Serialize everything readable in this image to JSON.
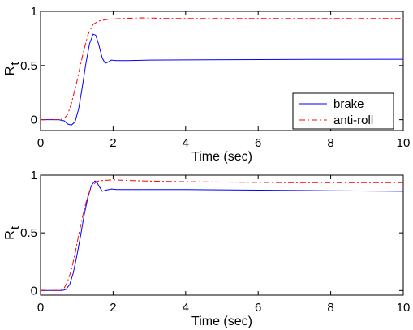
{
  "chart_data": [
    {
      "type": "line",
      "xlabel": "Time (sec)",
      "ylabel": "R",
      "ylabel_sub": "t",
      "xlim": [
        0,
        10
      ],
      "ylim": [
        -0.1,
        1.0
      ],
      "xticks": [
        0,
        2,
        4,
        6,
        8,
        10
      ],
      "yticks": [
        0,
        0.5,
        1
      ],
      "grid": false,
      "legend_position": "lower-right",
      "series": [
        {
          "name": "brake",
          "color": "#0000ff",
          "dash": "solid",
          "x": [
            0,
            0.5,
            0.65,
            0.75,
            0.85,
            0.95,
            1.05,
            1.15,
            1.25,
            1.35,
            1.45,
            1.52,
            1.6,
            1.7,
            1.78,
            1.85,
            1.95,
            2.1,
            2.4,
            3,
            4,
            6,
            8,
            10
          ],
          "y": [
            0,
            0,
            -0.01,
            -0.04,
            -0.05,
            -0.02,
            0.1,
            0.3,
            0.52,
            0.7,
            0.79,
            0.78,
            0.7,
            0.57,
            0.52,
            0.53,
            0.55,
            0.545,
            0.545,
            0.55,
            0.552,
            0.555,
            0.557,
            0.558
          ]
        },
        {
          "name": "anti-roll",
          "color": "#ff0000",
          "dash": "dashdot",
          "x": [
            0,
            0.5,
            0.65,
            0.75,
            0.85,
            1.0,
            1.15,
            1.3,
            1.45,
            1.6,
            1.75,
            1.9,
            2.0,
            2.3,
            2.8,
            3.5,
            5,
            7,
            10
          ],
          "y": [
            0,
            0,
            0.01,
            0.05,
            0.15,
            0.35,
            0.58,
            0.78,
            0.88,
            0.91,
            0.92,
            0.93,
            0.93,
            0.935,
            0.94,
            0.935,
            0.935,
            0.935,
            0.935
          ]
        }
      ]
    },
    {
      "type": "line",
      "xlabel": "Time (sec)",
      "ylabel": "R",
      "ylabel_sub": "t",
      "xlim": [
        0,
        10
      ],
      "ylim": [
        -0.04,
        1.0
      ],
      "xticks": [
        0,
        2,
        4,
        6,
        8,
        10
      ],
      "yticks": [
        0,
        0.5,
        1
      ],
      "grid": false,
      "legend_position": "none",
      "series": [
        {
          "name": "brake",
          "color": "#0000ff",
          "dash": "solid",
          "x": [
            0,
            0.6,
            0.7,
            0.8,
            0.9,
            1.0,
            1.1,
            1.2,
            1.3,
            1.4,
            1.5,
            1.55,
            1.62,
            1.7,
            1.8,
            1.95,
            2.1,
            2.5,
            3,
            4,
            6,
            8,
            10
          ],
          "y": [
            0,
            0,
            0.01,
            0.05,
            0.15,
            0.3,
            0.47,
            0.65,
            0.8,
            0.91,
            0.95,
            0.94,
            0.9,
            0.86,
            0.87,
            0.88,
            0.875,
            0.875,
            0.875,
            0.875,
            0.87,
            0.865,
            0.86
          ]
        },
        {
          "name": "anti-roll",
          "color": "#ff0000",
          "dash": "dashdot",
          "x": [
            0,
            0.55,
            0.65,
            0.75,
            0.85,
            0.95,
            1.05,
            1.15,
            1.25,
            1.35,
            1.45,
            1.6,
            1.8,
            2.0,
            2.3,
            2.8,
            3.5,
            5,
            7,
            10
          ],
          "y": [
            0,
            0,
            0.02,
            0.08,
            0.18,
            0.32,
            0.48,
            0.63,
            0.76,
            0.86,
            0.92,
            0.95,
            0.955,
            0.96,
            0.955,
            0.95,
            0.945,
            0.94,
            0.935,
            0.935
          ]
        }
      ]
    }
  ]
}
